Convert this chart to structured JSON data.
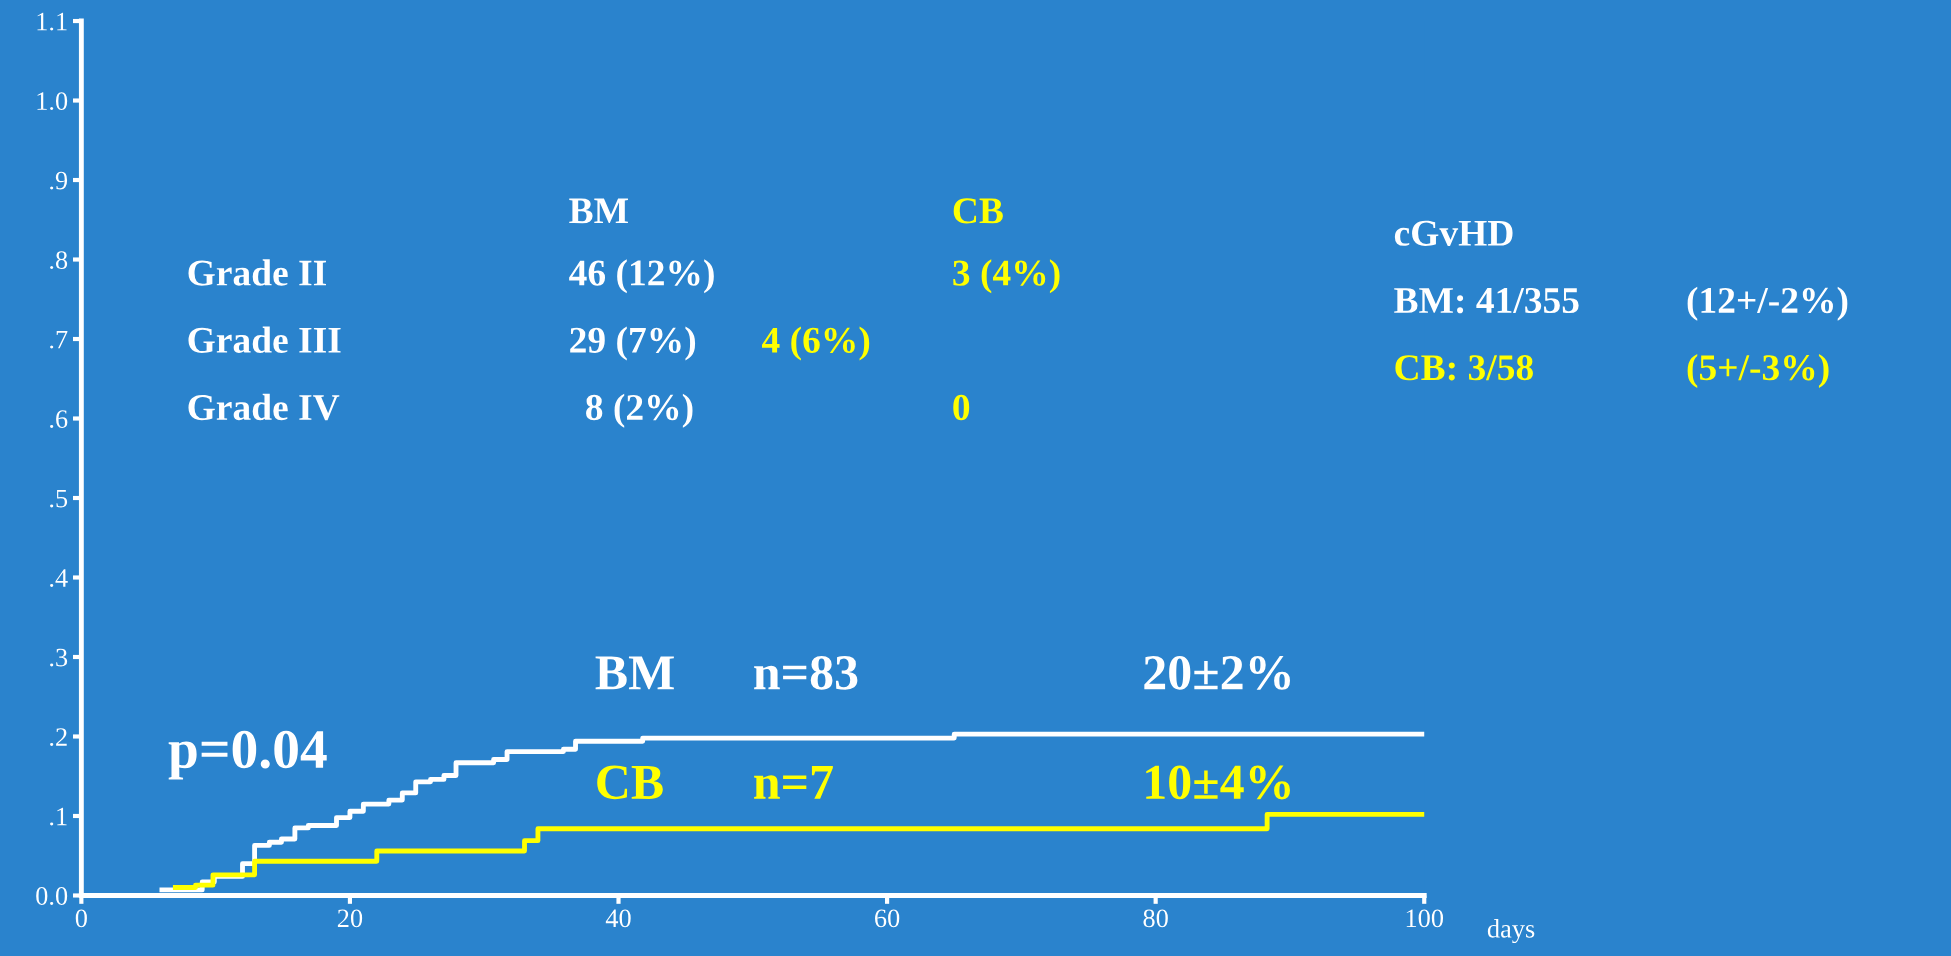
{
  "chart_data": {
    "type": "step",
    "xlabel": "days",
    "series": [
      {
        "name": "BM",
        "color": "#ffffff",
        "x": [
          6,
          9,
          9.9,
          12.0,
          12.9,
          14.0,
          14.9,
          15.9,
          16.9,
          19.0,
          20.0,
          21.0,
          22.9,
          23.9,
          24.9,
          26.0,
          27.0,
          27.9,
          30.7,
          31.7,
          35.9,
          36.8,
          41.8,
          65,
          100
        ],
        "values": [
          0.007,
          0.017,
          0.024,
          0.04,
          0.063,
          0.067,
          0.071,
          0.085,
          0.088,
          0.098,
          0.106,
          0.115,
          0.12,
          0.129,
          0.143,
          0.146,
          0.151,
          0.167,
          0.171,
          0.181,
          0.184,
          0.194,
          0.198,
          0.203,
          0.203
        ]
      },
      {
        "name": "CB",
        "color": "#ffff00",
        "x": [
          7,
          8.5,
          9.8,
          12.9,
          22,
          33,
          34,
          88.3,
          100
        ],
        "values": [
          0.01,
          0.013,
          0.026,
          0.043,
          0.056,
          0.069,
          0.084,
          0.102,
          0.102
        ]
      }
    ],
    "xlim": [
      0,
      100
    ],
    "ylim": [
      0,
      1.1
    ],
    "xticks": [
      0,
      20,
      40,
      60,
      80,
      100
    ],
    "yticks": [
      {
        "value": 0,
        "label": "0.0"
      },
      {
        "value": 0.1,
        "label": ".1"
      },
      {
        "value": 0.2,
        "label": ".2"
      },
      {
        "value": 0.3,
        "label": ".3"
      },
      {
        "value": 0.4,
        "label": ".4"
      },
      {
        "value": 0.5,
        "label": ".5"
      },
      {
        "value": 0.6,
        "label": ".6"
      },
      {
        "value": 0.7,
        "label": ".7"
      },
      {
        "value": 0.8,
        "label": ".8"
      },
      {
        "value": 0.9,
        "label": ".9"
      },
      {
        "value": 1.0,
        "label": "1.0"
      },
      {
        "value": 1.1,
        "label": "1.1"
      }
    ],
    "grid": false,
    "legend": false,
    "annotations": [
      "BM",
      "CB",
      "Grade II",
      "46 (12%)",
      "3 (4%)",
      "Grade III",
      "29 (7%)",
      "4 (6%)",
      "Grade IV",
      "8 (2%)",
      "0",
      "cGvHD",
      "BM: 41/355",
      "(12+/-2%)",
      "CB: 3/58",
      "(5+/-3%)",
      "n=83",
      "20±2%",
      "n=7",
      "10±4%",
      "p=0.04"
    ]
  }
}
